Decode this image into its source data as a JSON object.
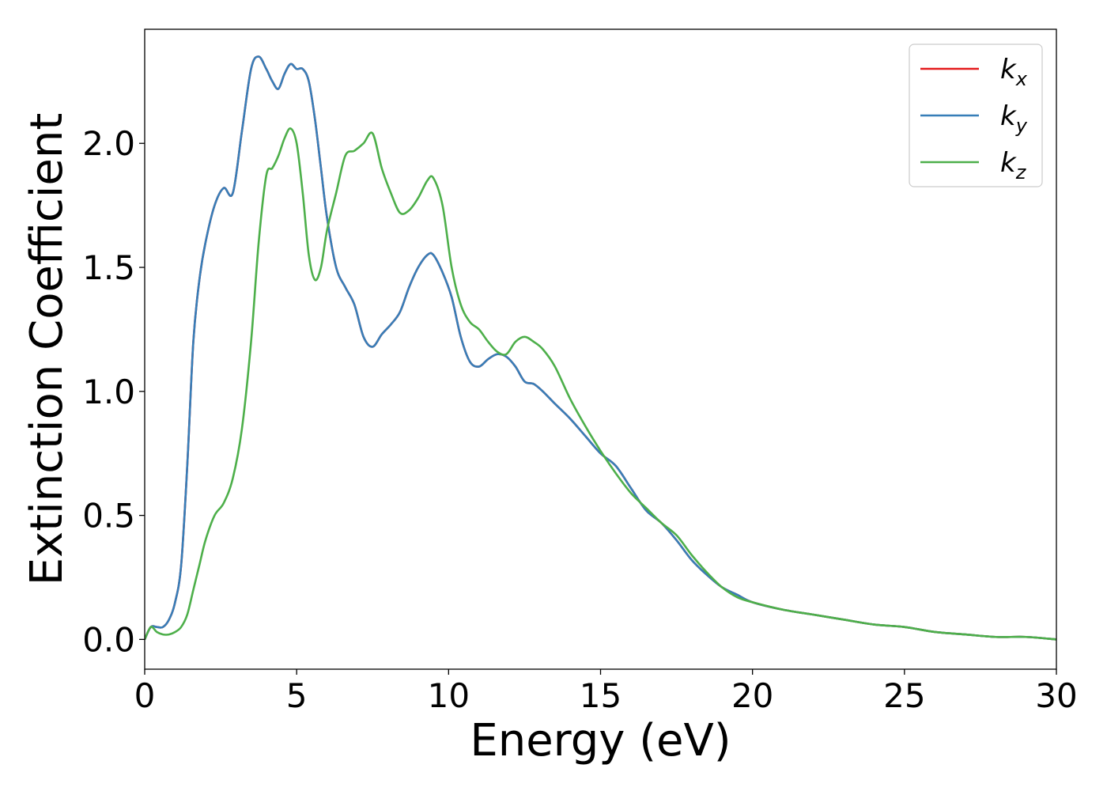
{
  "chart_data": {
    "type": "line",
    "xlabel": "Energy (eV)",
    "ylabel": "Extinction Coefficient",
    "xlim": [
      0,
      30
    ],
    "ylim": [
      -0.12,
      2.46
    ],
    "xticks": [
      0,
      5,
      10,
      15,
      20,
      25,
      30
    ],
    "xtick_labels": [
      "0",
      "5",
      "10",
      "15",
      "20",
      "25",
      "30"
    ],
    "yticks": [
      0.0,
      0.5,
      1.0,
      1.5,
      2.0
    ],
    "ytick_labels": [
      "0.0",
      "0.5",
      "1.0",
      "1.5",
      "2.0"
    ],
    "grid": false,
    "legend_position": "top-right",
    "series": [
      {
        "name": "k_x",
        "legend_base": "k",
        "legend_sub": "x",
        "color": "#e41a1c",
        "x": [
          0,
          0.2,
          0.4,
          0.6,
          0.8,
          1.0,
          1.2,
          1.4,
          1.6,
          1.8,
          2.0,
          2.3,
          2.6,
          2.9,
          3.2,
          3.5,
          3.75,
          4.0,
          4.2,
          4.4,
          4.6,
          4.8,
          5.0,
          5.2,
          5.4,
          5.6,
          5.8,
          6.0,
          6.3,
          6.6,
          6.9,
          7.2,
          7.5,
          7.8,
          8.1,
          8.4,
          8.7,
          9.0,
          9.3,
          9.5,
          9.8,
          10.1,
          10.4,
          10.7,
          11.0,
          11.3,
          11.6,
          11.9,
          12.2,
          12.5,
          12.8,
          13.1,
          13.5,
          14.0,
          14.5,
          15.0,
          15.5,
          16.0,
          16.5,
          17.0,
          17.5,
          18.0,
          18.5,
          19.0,
          19.5,
          20.0,
          21.0,
          22.0,
          23.0,
          24.0,
          25.0,
          26.0,
          27.0,
          28.0,
          29.0,
          30.0
        ],
        "y": [
          0.0,
          0.05,
          0.05,
          0.05,
          0.08,
          0.15,
          0.3,
          0.7,
          1.2,
          1.45,
          1.6,
          1.75,
          1.82,
          1.8,
          2.05,
          2.3,
          2.35,
          2.3,
          2.25,
          2.22,
          2.28,
          2.32,
          2.3,
          2.3,
          2.25,
          2.1,
          1.9,
          1.7,
          1.5,
          1.42,
          1.35,
          1.22,
          1.18,
          1.23,
          1.27,
          1.32,
          1.42,
          1.5,
          1.55,
          1.55,
          1.48,
          1.38,
          1.22,
          1.12,
          1.1,
          1.13,
          1.15,
          1.14,
          1.1,
          1.04,
          1.03,
          1.0,
          0.95,
          0.89,
          0.82,
          0.75,
          0.7,
          0.61,
          0.52,
          0.47,
          0.4,
          0.32,
          0.26,
          0.21,
          0.18,
          0.15,
          0.12,
          0.1,
          0.08,
          0.06,
          0.05,
          0.03,
          0.02,
          0.01,
          0.01,
          0.0
        ]
      },
      {
        "name": "k_y",
        "legend_base": "k",
        "legend_sub": "y",
        "color": "#377eb8",
        "x": [
          0,
          0.2,
          0.4,
          0.6,
          0.8,
          1.0,
          1.2,
          1.4,
          1.6,
          1.8,
          2.0,
          2.3,
          2.6,
          2.9,
          3.2,
          3.5,
          3.75,
          4.0,
          4.2,
          4.4,
          4.6,
          4.8,
          5.0,
          5.2,
          5.4,
          5.6,
          5.8,
          6.0,
          6.3,
          6.6,
          6.9,
          7.2,
          7.5,
          7.8,
          8.1,
          8.4,
          8.7,
          9.0,
          9.3,
          9.5,
          9.8,
          10.1,
          10.4,
          10.7,
          11.0,
          11.3,
          11.6,
          11.9,
          12.2,
          12.5,
          12.8,
          13.1,
          13.5,
          14.0,
          14.5,
          15.0,
          15.5,
          16.0,
          16.5,
          17.0,
          17.5,
          18.0,
          18.5,
          19.0,
          19.5,
          20.0,
          21.0,
          22.0,
          23.0,
          24.0,
          25.0,
          26.0,
          27.0,
          28.0,
          29.0,
          30.0
        ],
        "y": [
          0.0,
          0.05,
          0.05,
          0.05,
          0.08,
          0.15,
          0.3,
          0.7,
          1.2,
          1.45,
          1.6,
          1.75,
          1.82,
          1.8,
          2.05,
          2.3,
          2.35,
          2.3,
          2.25,
          2.22,
          2.28,
          2.32,
          2.3,
          2.3,
          2.25,
          2.1,
          1.9,
          1.7,
          1.5,
          1.42,
          1.35,
          1.22,
          1.18,
          1.23,
          1.27,
          1.32,
          1.42,
          1.5,
          1.55,
          1.55,
          1.48,
          1.38,
          1.22,
          1.12,
          1.1,
          1.13,
          1.15,
          1.14,
          1.1,
          1.04,
          1.03,
          1.0,
          0.95,
          0.89,
          0.82,
          0.75,
          0.7,
          0.61,
          0.52,
          0.47,
          0.4,
          0.32,
          0.26,
          0.21,
          0.18,
          0.15,
          0.12,
          0.1,
          0.08,
          0.06,
          0.05,
          0.03,
          0.02,
          0.01,
          0.01,
          0.0
        ]
      },
      {
        "name": "k_z",
        "legend_base": "k",
        "legend_sub": "z",
        "color": "#4daf4a",
        "x": [
          0,
          0.2,
          0.4,
          0.6,
          0.8,
          1.0,
          1.2,
          1.4,
          1.6,
          1.8,
          2.0,
          2.3,
          2.6,
          2.9,
          3.2,
          3.5,
          3.75,
          4.0,
          4.2,
          4.4,
          4.6,
          4.8,
          5.0,
          5.2,
          5.4,
          5.6,
          5.8,
          6.0,
          6.3,
          6.6,
          6.9,
          7.2,
          7.5,
          7.8,
          8.1,
          8.4,
          8.7,
          9.0,
          9.3,
          9.5,
          9.8,
          10.1,
          10.4,
          10.7,
          11.0,
          11.3,
          11.6,
          11.9,
          12.2,
          12.5,
          12.8,
          13.1,
          13.5,
          14.0,
          14.5,
          15.0,
          15.5,
          16.0,
          16.5,
          17.0,
          17.5,
          18.0,
          18.5,
          19.0,
          19.5,
          20.0,
          21.0,
          22.0,
          23.0,
          24.0,
          25.0,
          26.0,
          27.0,
          28.0,
          29.0,
          30.0
        ],
        "y": [
          0.0,
          0.05,
          0.03,
          0.02,
          0.02,
          0.03,
          0.05,
          0.1,
          0.2,
          0.3,
          0.4,
          0.5,
          0.55,
          0.65,
          0.85,
          1.2,
          1.6,
          1.87,
          1.9,
          1.95,
          2.02,
          2.06,
          2.0,
          1.8,
          1.55,
          1.45,
          1.5,
          1.65,
          1.8,
          1.95,
          1.97,
          2.0,
          2.04,
          1.9,
          1.8,
          1.72,
          1.73,
          1.78,
          1.85,
          1.86,
          1.75,
          1.5,
          1.35,
          1.28,
          1.25,
          1.2,
          1.16,
          1.15,
          1.2,
          1.22,
          1.2,
          1.17,
          1.1,
          0.97,
          0.86,
          0.76,
          0.67,
          0.59,
          0.53,
          0.47,
          0.42,
          0.34,
          0.27,
          0.21,
          0.17,
          0.15,
          0.12,
          0.1,
          0.08,
          0.06,
          0.05,
          0.03,
          0.02,
          0.01,
          0.01,
          0.0
        ]
      }
    ]
  }
}
